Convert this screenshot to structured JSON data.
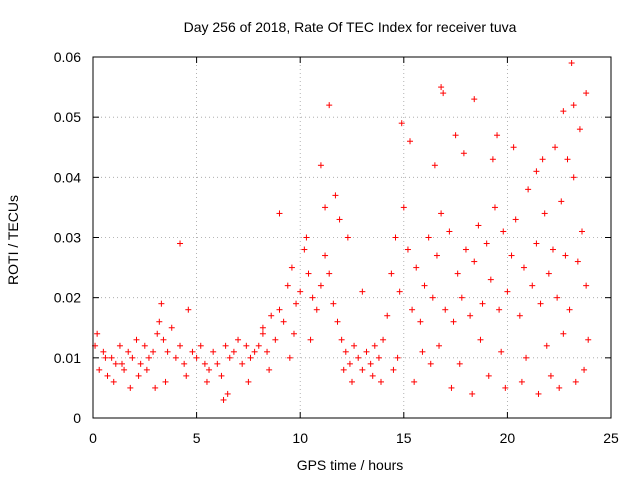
{
  "chart_data": {
    "type": "scatter",
    "title": "Day 256 of 2018, Rate Of TEC Index for receiver tuva",
    "xlabel": "GPS time / hours",
    "ylabel": "ROTI / TECUs",
    "xlim": [
      0,
      25
    ],
    "ylim": [
      0,
      0.06
    ],
    "grid": true,
    "marker": "plus",
    "marker_color": "#ff0000",
    "x_ticks": [
      0,
      5,
      10,
      15,
      20,
      25
    ],
    "x_tick_labels": [
      "0",
      "5",
      "10",
      "15",
      "20",
      "25"
    ],
    "y_ticks": [
      0,
      0.01,
      0.02,
      0.03,
      0.04,
      0.05,
      0.06
    ],
    "y_tick_labels": [
      "0",
      "0.01",
      "0.02",
      "0.03",
      "0.04",
      "0.05",
      "0.06"
    ],
    "series": [
      {
        "name": "ROTI",
        "color": "#ff0000",
        "x": [
          0.1,
          0.3,
          0.5,
          0.7,
          0.9,
          1.1,
          1.3,
          1.5,
          1.7,
          1.9,
          2.1,
          2.3,
          2.5,
          2.7,
          2.9,
          3.1,
          3.2,
          3.3,
          3.4,
          3.6,
          3.8,
          4.0,
          4.2,
          4.4,
          4.6,
          4.8,
          5.0,
          5.2,
          5.4,
          5.6,
          5.8,
          6.0,
          6.2,
          6.4,
          6.6,
          6.8,
          7.0,
          7.2,
          7.4,
          7.6,
          7.8,
          8.0,
          8.2,
          8.4,
          8.6,
          8.8,
          9.0,
          9.2,
          9.4,
          9.6,
          9.8,
          10.0,
          10.2,
          10.4,
          10.6,
          10.8,
          11.0,
          11.2,
          11.4,
          11.6,
          11.8,
          12.0,
          12.2,
          12.4,
          12.6,
          12.8,
          13.0,
          13.2,
          13.4,
          13.6,
          13.8,
          14.0,
          14.2,
          14.4,
          14.6,
          14.8,
          15.0,
          15.2,
          15.4,
          15.6,
          15.8,
          16.0,
          16.2,
          16.4,
          16.6,
          16.8,
          17.0,
          17.2,
          17.4,
          17.6,
          17.8,
          18.0,
          18.2,
          18.4,
          18.6,
          18.8,
          19.0,
          19.2,
          19.4,
          19.6,
          19.8,
          20.0,
          20.2,
          20.4,
          20.6,
          20.8,
          21.0,
          21.2,
          21.4,
          21.6,
          21.8,
          22.0,
          22.2,
          22.4,
          22.6,
          22.8,
          23.0,
          23.2,
          23.4,
          23.6,
          23.8,
          4.2,
          11.4,
          9.0,
          13.0,
          16.8,
          16.9,
          18.4,
          19.5,
          22.7,
          23.1,
          23.2,
          23.8,
          14.9,
          15.3,
          16.5,
          17.5,
          17.9,
          19.3,
          20.3,
          21.4,
          21.7,
          22.3,
          22.9,
          23.5,
          10.3,
          11.0,
          11.2,
          11.7,
          11.9,
          12.3,
          0.2,
          0.6,
          1.0,
          1.4,
          1.8,
          2.2,
          2.6,
          3.0,
          3.5,
          4.5,
          5.5,
          6.5,
          7.5,
          8.5,
          9.5,
          10.5,
          12.5,
          13.5,
          14.5,
          15.5,
          16.3,
          17.3,
          18.3,
          19.1,
          19.9,
          20.7,
          21.5,
          22.1,
          22.5,
          23.3,
          23.7,
          14.7,
          15.9,
          16.7,
          17.7,
          18.7,
          19.7,
          20.9,
          21.9,
          22.7,
          23.9,
          6.3,
          8.2,
          9.7,
          12.1,
          13.9
        ],
        "y": [
          0.012,
          0.008,
          0.011,
          0.007,
          0.01,
          0.009,
          0.012,
          0.008,
          0.011,
          0.01,
          0.013,
          0.009,
          0.012,
          0.01,
          0.011,
          0.014,
          0.016,
          0.019,
          0.013,
          0.011,
          0.015,
          0.01,
          0.012,
          0.009,
          0.018,
          0.011,
          0.01,
          0.012,
          0.009,
          0.008,
          0.011,
          0.009,
          0.007,
          0.012,
          0.01,
          0.011,
          0.013,
          0.009,
          0.012,
          0.01,
          0.011,
          0.012,
          0.014,
          0.011,
          0.017,
          0.013,
          0.018,
          0.016,
          0.022,
          0.025,
          0.019,
          0.021,
          0.028,
          0.024,
          0.02,
          0.018,
          0.022,
          0.027,
          0.024,
          0.019,
          0.016,
          0.013,
          0.011,
          0.009,
          0.012,
          0.01,
          0.008,
          0.011,
          0.009,
          0.012,
          0.01,
          0.013,
          0.017,
          0.024,
          0.03,
          0.021,
          0.035,
          0.028,
          0.018,
          0.025,
          0.016,
          0.022,
          0.03,
          0.02,
          0.027,
          0.034,
          0.018,
          0.031,
          0.016,
          0.024,
          0.02,
          0.028,
          0.017,
          0.026,
          0.032,
          0.019,
          0.029,
          0.023,
          0.035,
          0.018,
          0.031,
          0.021,
          0.027,
          0.033,
          0.017,
          0.025,
          0.038,
          0.022,
          0.029,
          0.019,
          0.034,
          0.024,
          0.028,
          0.02,
          0.036,
          0.027,
          0.018,
          0.04,
          0.026,
          0.031,
          0.022,
          0.029,
          0.052,
          0.034,
          0.021,
          0.055,
          0.054,
          0.053,
          0.047,
          0.051,
          0.059,
          0.052,
          0.054,
          0.049,
          0.046,
          0.042,
          0.047,
          0.044,
          0.043,
          0.045,
          0.041,
          0.043,
          0.045,
          0.043,
          0.048,
          0.03,
          0.042,
          0.035,
          0.037,
          0.033,
          0.03,
          0.014,
          0.01,
          0.006,
          0.009,
          0.005,
          0.007,
          0.008,
          0.005,
          0.006,
          0.007,
          0.006,
          0.004,
          0.006,
          0.008,
          0.01,
          0.013,
          0.006,
          0.007,
          0.008,
          0.006,
          0.009,
          0.005,
          0.004,
          0.007,
          0.005,
          0.006,
          0.004,
          0.007,
          0.005,
          0.006,
          0.008,
          0.01,
          0.011,
          0.012,
          0.009,
          0.013,
          0.011,
          0.01,
          0.012,
          0.014,
          0.013,
          0.003,
          0.015,
          0.014,
          0.008,
          0.006
        ]
      }
    ]
  }
}
